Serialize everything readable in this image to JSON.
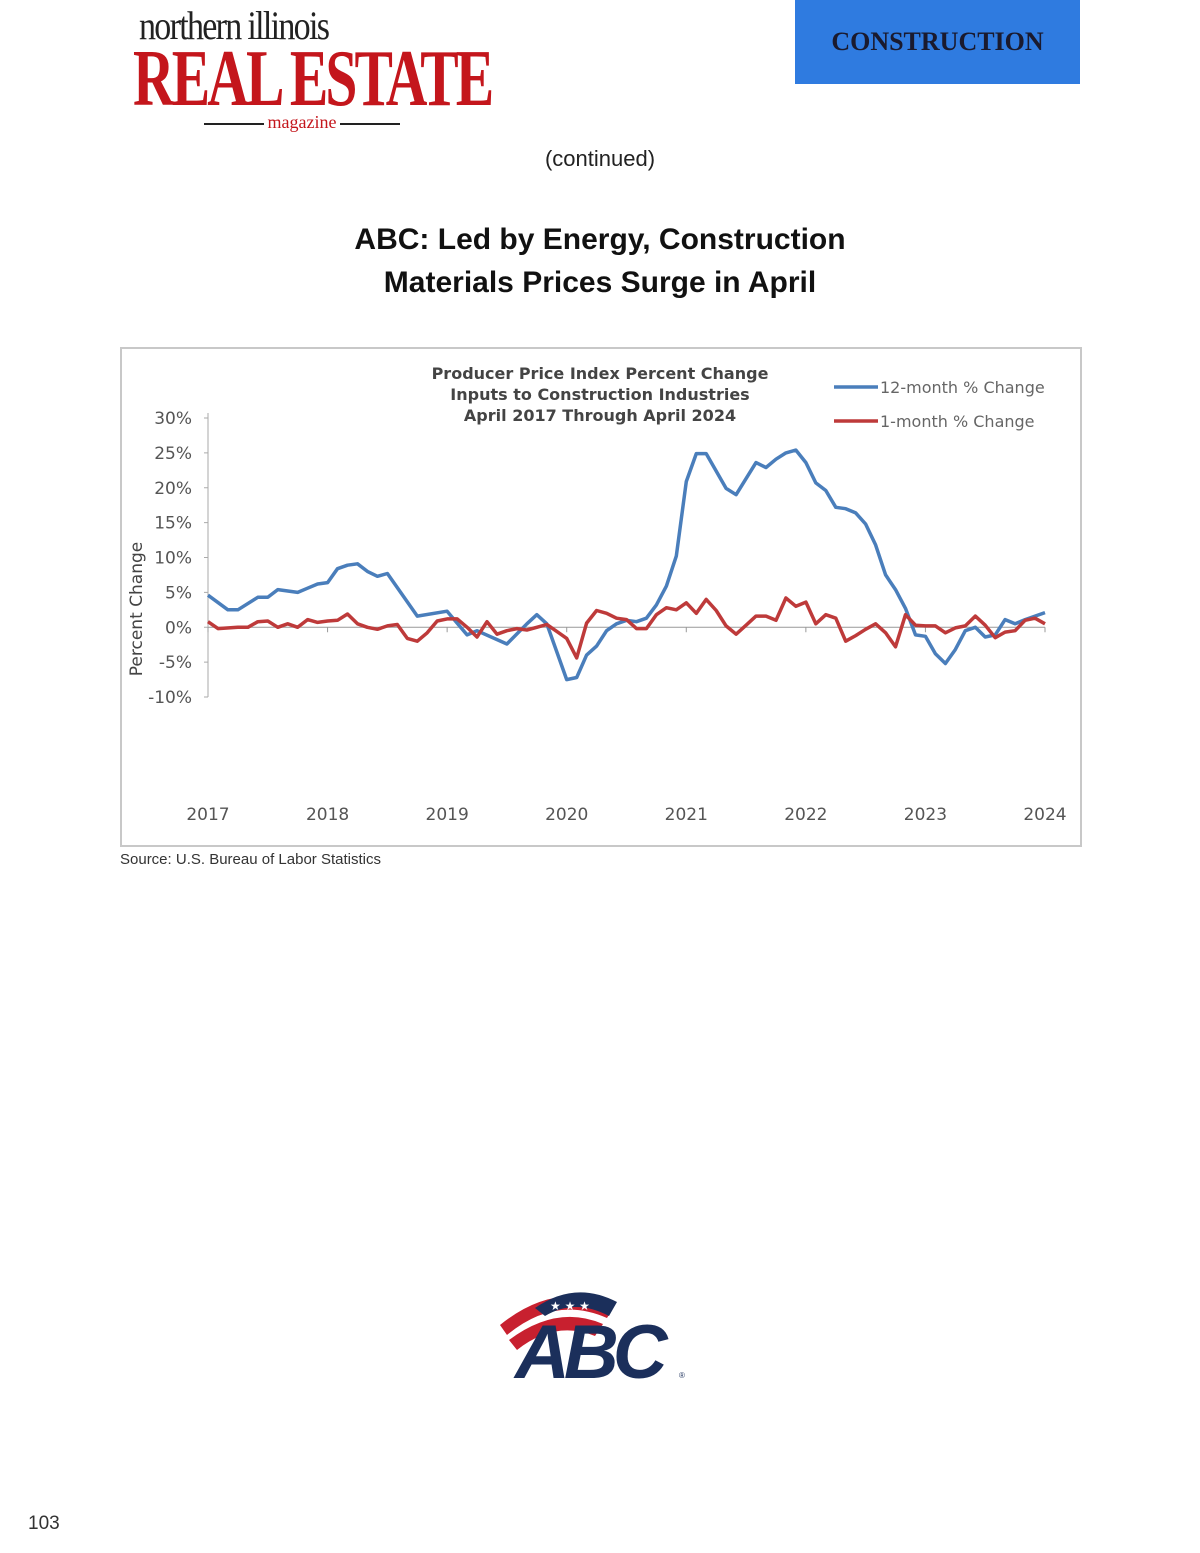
{
  "header": {
    "logo_line1": "northern illinois",
    "logo_line2": "REAL ESTATE",
    "logo_line3": "magazine",
    "section": "CONSTRUCTION"
  },
  "continued": "(continued)",
  "article": {
    "title_line1": "ABC: Led by Energy, Construction",
    "title_line2": "Materials Prices Surge in April"
  },
  "source": "Source: U.S. Bureau of Labor Statistics",
  "footer": {
    "page_number": "103",
    "abc_logo": "ABC"
  },
  "colors": {
    "section_banner": "#2f7be0",
    "logo_red": "#c4161c",
    "series_12m": "#4a7ebb",
    "series_1m": "#be3a3a"
  },
  "chart_data": {
    "type": "line",
    "title_lines": [
      "Producer Price Index Percent Change",
      "Inputs to Construction Industries",
      "April 2017 Through April 2024"
    ],
    "ylabel": "Percent Change",
    "xlabel": "",
    "ylim": [
      -10,
      30
    ],
    "yticks": [
      "30%",
      "25%",
      "20%",
      "15%",
      "10%",
      "5%",
      "0%",
      "-5%",
      "-10%"
    ],
    "ytick_values": [
      30,
      25,
      20,
      15,
      10,
      5,
      0,
      -5,
      -10
    ],
    "xticks": [
      "2017",
      "2018",
      "2019",
      "2020",
      "2021",
      "2022",
      "2023",
      "2024"
    ],
    "xrange": [
      "2017-04",
      "2024-04"
    ],
    "legend_position": "top-right",
    "grid": false,
    "series": [
      {
        "name": "12-month % Change",
        "color": "#4a7ebb",
        "points": [
          [
            "2017-04",
            4.6
          ],
          [
            "2017-06",
            2.5
          ],
          [
            "2017-07",
            2.5
          ],
          [
            "2017-09",
            4.3
          ],
          [
            "2017-10",
            4.3
          ],
          [
            "2017-11",
            5.4
          ],
          [
            "2018-01",
            5.0
          ],
          [
            "2018-02",
            5.6
          ],
          [
            "2018-03",
            6.2
          ],
          [
            "2018-04",
            6.4
          ],
          [
            "2018-05",
            8.4
          ],
          [
            "2018-06",
            8.9
          ],
          [
            "2018-07",
            9.1
          ],
          [
            "2018-08",
            8.0
          ],
          [
            "2018-09",
            7.3
          ],
          [
            "2018-10",
            7.7
          ],
          [
            "2019-01",
            1.6
          ],
          [
            "2019-04",
            2.3
          ],
          [
            "2019-06",
            -1.1
          ],
          [
            "2019-07",
            -0.5
          ],
          [
            "2019-10",
            -2.4
          ],
          [
            "2019-12",
            0.5
          ],
          [
            "2020-01",
            1.8
          ],
          [
            "2020-02",
            0.5
          ],
          [
            "2020-04",
            -7.5
          ],
          [
            "2020-05",
            -7.2
          ],
          [
            "2020-06",
            -4.0
          ],
          [
            "2020-07",
            -2.7
          ],
          [
            "2020-08",
            -0.5
          ],
          [
            "2020-09",
            0.5
          ],
          [
            "2020-10",
            1.0
          ],
          [
            "2020-11",
            0.8
          ],
          [
            "2020-12",
            1.3
          ],
          [
            "2021-01",
            3.2
          ],
          [
            "2021-02",
            5.9
          ],
          [
            "2021-03",
            10.2
          ],
          [
            "2021-04",
            20.9
          ],
          [
            "2021-05",
            24.9
          ],
          [
            "2021-06",
            24.9
          ],
          [
            "2021-08",
            19.9
          ],
          [
            "2021-09",
            19.0
          ],
          [
            "2021-11",
            23.6
          ],
          [
            "2021-12",
            22.9
          ],
          [
            "2022-01",
            24.1
          ],
          [
            "2022-02",
            25.0
          ],
          [
            "2022-03",
            25.4
          ],
          [
            "2022-04",
            23.6
          ],
          [
            "2022-05",
            20.7
          ],
          [
            "2022-06",
            19.6
          ],
          [
            "2022-07",
            17.2
          ],
          [
            "2022-08",
            17.0
          ],
          [
            "2022-09",
            16.4
          ],
          [
            "2022-10",
            14.8
          ],
          [
            "2022-11",
            11.8
          ],
          [
            "2022-12",
            7.5
          ],
          [
            "2023-01",
            5.4
          ],
          [
            "2023-02",
            2.7
          ],
          [
            "2023-03",
            -1.1
          ],
          [
            "2023-04",
            -1.3
          ],
          [
            "2023-05",
            -3.8
          ],
          [
            "2023-06",
            -5.2
          ],
          [
            "2023-07",
            -3.2
          ],
          [
            "2023-08",
            -0.5
          ],
          [
            "2023-09",
            0.0
          ],
          [
            "2023-10",
            -1.4
          ],
          [
            "2023-11",
            -1.1
          ],
          [
            "2023-12",
            1.1
          ],
          [
            "2024-01",
            0.5
          ],
          [
            "2024-02",
            1.1
          ],
          [
            "2024-04",
            2.1
          ]
        ]
      },
      {
        "name": "1-month % Change",
        "color": "#be3a3a",
        "points": [
          [
            "2017-04",
            0.8
          ],
          [
            "2017-05",
            -0.2
          ],
          [
            "2017-07",
            0
          ],
          [
            "2017-08",
            0
          ],
          [
            "2017-09",
            0.8
          ],
          [
            "2017-10",
            0.9
          ],
          [
            "2017-11",
            0
          ],
          [
            "2017-12",
            0.5
          ],
          [
            "2018-01",
            0
          ],
          [
            "2018-02",
            1.1
          ],
          [
            "2018-03",
            0.7
          ],
          [
            "2018-04",
            0.9
          ],
          [
            "2018-05",
            1.0
          ],
          [
            "2018-06",
            1.9
          ],
          [
            "2018-07",
            0.5
          ],
          [
            "2018-08",
            0
          ],
          [
            "2018-09",
            -0.3
          ],
          [
            "2018-10",
            0.2
          ],
          [
            "2018-11",
            0.4
          ],
          [
            "2018-12",
            -1.6
          ],
          [
            "2019-01",
            -2.0
          ],
          [
            "2019-02",
            -0.8
          ],
          [
            "2019-03",
            0.9
          ],
          [
            "2019-04",
            1.2
          ],
          [
            "2019-05",
            1.2
          ],
          [
            "2019-06",
            0
          ],
          [
            "2019-07",
            -1.4
          ],
          [
            "2019-08",
            0.8
          ],
          [
            "2019-09",
            -1.0
          ],
          [
            "2019-10",
            -0.5
          ],
          [
            "2019-11",
            -0.2
          ],
          [
            "2019-12",
            -0.4
          ],
          [
            "2020-01",
            0
          ],
          [
            "2020-02",
            0.4
          ],
          [
            "2020-03",
            -0.6
          ],
          [
            "2020-04",
            -1.6
          ],
          [
            "2020-05",
            -4.4
          ],
          [
            "2020-06",
            0.6
          ],
          [
            "2020-07",
            2.4
          ],
          [
            "2020-08",
            2.0
          ],
          [
            "2020-09",
            1.3
          ],
          [
            "2020-10",
            1.1
          ],
          [
            "2020-11",
            -0.2
          ],
          [
            "2020-12",
            -0.2
          ],
          [
            "2021-01",
            1.8
          ],
          [
            "2021-02",
            2.8
          ],
          [
            "2021-03",
            2.5
          ],
          [
            "2021-04",
            3.5
          ],
          [
            "2021-05",
            2.0
          ],
          [
            "2021-06",
            4.0
          ],
          [
            "2021-07",
            2.4
          ],
          [
            "2021-08",
            0.2
          ],
          [
            "2021-09",
            -1.0
          ],
          [
            "2021-10",
            0.3
          ],
          [
            "2021-11",
            1.6
          ],
          [
            "2021-12",
            1.6
          ],
          [
            "2022-01",
            1.0
          ],
          [
            "2022-02",
            4.2
          ],
          [
            "2022-03",
            3.0
          ],
          [
            "2022-04",
            3.6
          ],
          [
            "2022-05",
            0.5
          ],
          [
            "2022-06",
            1.8
          ],
          [
            "2022-07",
            1.3
          ],
          [
            "2022-08",
            -2.0
          ],
          [
            "2022-09",
            -1.2
          ],
          [
            "2022-10",
            -0.3
          ],
          [
            "2022-11",
            0.5
          ],
          [
            "2022-12",
            -0.8
          ],
          [
            "2023-01",
            -2.8
          ],
          [
            "2023-02",
            1.8
          ],
          [
            "2023-03",
            0.3
          ],
          [
            "2023-04",
            0.2
          ],
          [
            "2023-05",
            0.2
          ],
          [
            "2023-06",
            -0.8
          ],
          [
            "2023-07",
            -0.1
          ],
          [
            "2023-08",
            0.2
          ],
          [
            "2023-09",
            1.6
          ],
          [
            "2023-10",
            0.3
          ],
          [
            "2023-11",
            -1.5
          ],
          [
            "2023-12",
            -0.7
          ],
          [
            "2024-01",
            -0.5
          ],
          [
            "2024-02",
            1.0
          ],
          [
            "2024-03",
            1.3
          ],
          [
            "2024-04",
            0.5
          ]
        ]
      }
    ]
  }
}
